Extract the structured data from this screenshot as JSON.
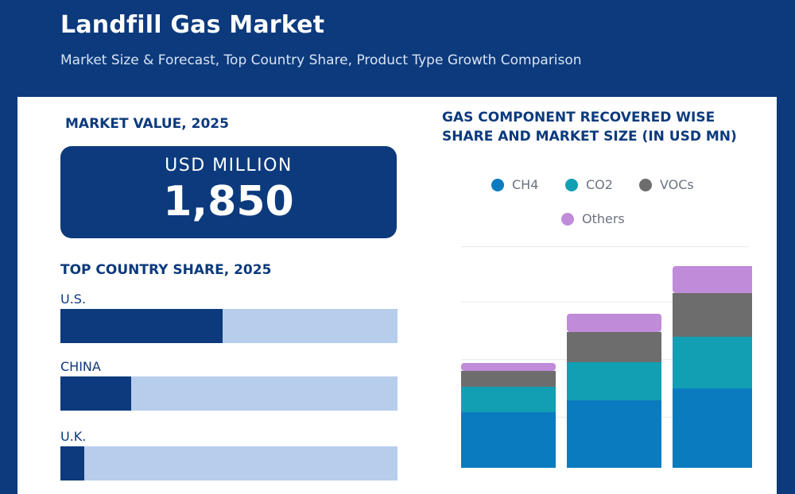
{
  "header": {
    "title": "Landfill Gas Market",
    "subtitle": "Market Size & Forecast, Top Country Share, Product Type Growth Comparison"
  },
  "market_value": {
    "title": "MARKET VALUE, 2025",
    "unit": "USD MILLION",
    "value": "1,850"
  },
  "country_share": {
    "title": "TOP COUNTRY SHARE, 2025",
    "items": [
      {
        "label": "U.S.",
        "share": 0.48
      },
      {
        "label": "CHINA",
        "share": 0.21
      },
      {
        "label": "U.K.",
        "share": 0.07
      }
    ]
  },
  "colors": {
    "primary": "#0c3a7d",
    "track": "#b7cdec",
    "CH4": "#0a7bbf",
    "CO2": "#129fb3",
    "VOCs": "#6d6d6d",
    "Others": "#c08bd8"
  },
  "chart_data": {
    "type": "bar",
    "stacked": true,
    "title": "GAS COMPONENT RECOVERED WISE SHARE AND MARKET SIZE (IN USD MN)",
    "xlabel": "",
    "ylabel": "",
    "categories": [
      "",
      "",
      ""
    ],
    "series": [
      {
        "name": "CH4",
        "values": [
          70,
          85,
          100
        ]
      },
      {
        "name": "CO2",
        "values": [
          32,
          48,
          65
        ]
      },
      {
        "name": "VOCs",
        "values": [
          20,
          38,
          55
        ]
      },
      {
        "name": "Others",
        "values": [
          10,
          23,
          34
        ]
      }
    ],
    "ylim": [
      0,
      290
    ],
    "grid": true,
    "legend": "top"
  }
}
